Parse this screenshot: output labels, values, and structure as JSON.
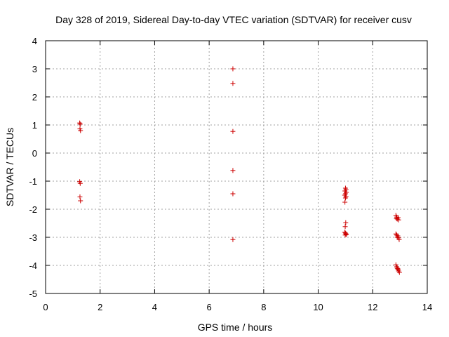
{
  "chart_data": {
    "type": "scatter",
    "title": "Day 328 of 2019, Sidereal Day-to-day VTEC variation (SDTVAR) for receiver cusv",
    "xlabel": "GPS time / hours",
    "ylabel": "SDTVAR / TECUs",
    "xlim": [
      0,
      14
    ],
    "ylim": [
      -5,
      4
    ],
    "xticks": [
      0,
      2,
      4,
      6,
      8,
      10,
      12,
      14
    ],
    "yticks": [
      -5,
      -4,
      -3,
      -2,
      -1,
      0,
      1,
      2,
      3,
      4
    ],
    "grid": true,
    "marker": "+",
    "color": "#cc0000",
    "series": [
      {
        "name": "SDTVAR",
        "points": [
          [
            1.25,
            1.07
          ],
          [
            1.27,
            1.03
          ],
          [
            1.26,
            0.86
          ],
          [
            1.28,
            0.8
          ],
          [
            1.25,
            -1.02
          ],
          [
            1.27,
            -1.08
          ],
          [
            1.26,
            -1.56
          ],
          [
            1.28,
            -1.7
          ],
          [
            6.87,
            3.0
          ],
          [
            6.87,
            2.48
          ],
          [
            6.87,
            0.77
          ],
          [
            6.87,
            -0.62
          ],
          [
            6.87,
            -1.45
          ],
          [
            6.87,
            -3.08
          ],
          [
            11.0,
            -1.25
          ],
          [
            11.02,
            -1.3
          ],
          [
            10.98,
            -1.35
          ],
          [
            11.03,
            -1.4
          ],
          [
            11.0,
            -1.45
          ],
          [
            10.97,
            -1.5
          ],
          [
            11.02,
            -1.55
          ],
          [
            11.0,
            -1.6
          ],
          [
            10.98,
            -1.75
          ],
          [
            11.01,
            -2.48
          ],
          [
            10.99,
            -2.62
          ],
          [
            10.97,
            -2.82
          ],
          [
            11.0,
            -2.85
          ],
          [
            11.02,
            -2.88
          ],
          [
            10.99,
            -2.92
          ],
          [
            11.03,
            -2.9
          ],
          [
            12.85,
            -2.22
          ],
          [
            12.88,
            -2.28
          ],
          [
            12.93,
            -2.3
          ],
          [
            12.9,
            -2.35
          ],
          [
            12.95,
            -2.38
          ],
          [
            12.87,
            -2.33
          ],
          [
            12.85,
            -2.88
          ],
          [
            12.88,
            -2.92
          ],
          [
            12.92,
            -2.95
          ],
          [
            12.9,
            -3.0
          ],
          [
            12.95,
            -3.02
          ],
          [
            12.97,
            -3.08
          ],
          [
            12.85,
            -3.98
          ],
          [
            12.88,
            -4.05
          ],
          [
            12.9,
            -4.1
          ],
          [
            12.93,
            -4.15
          ],
          [
            12.95,
            -4.2
          ],
          [
            12.98,
            -4.25
          ],
          [
            12.92,
            -4.12
          ]
        ]
      }
    ]
  }
}
